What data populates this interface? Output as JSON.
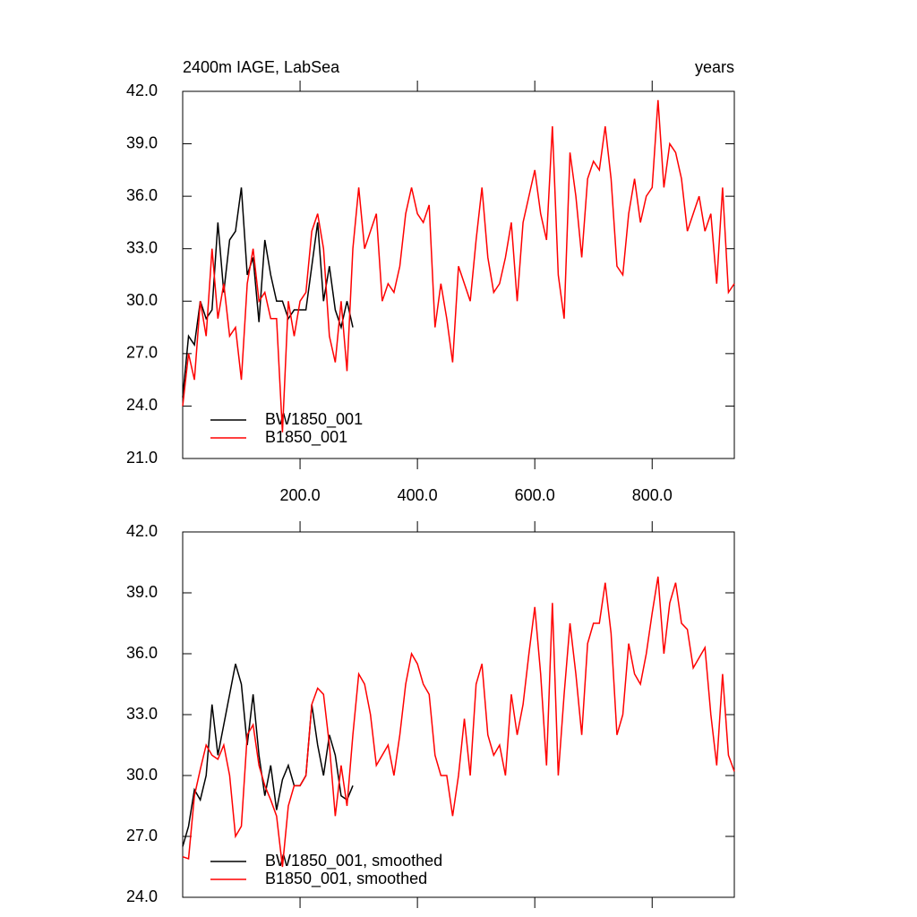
{
  "chart_data": [
    {
      "type": "line",
      "title": "2400m IAGE, LabSea",
      "units": "years",
      "xlim": [
        0,
        940
      ],
      "xticks": [
        {
          "value": 200,
          "label": "200.0"
        },
        {
          "value": 400,
          "label": "400.0"
        },
        {
          "value": 600,
          "label": "600.0"
        },
        {
          "value": 800,
          "label": "800.0"
        }
      ],
      "ylim": [
        21,
        42
      ],
      "yticks": [
        {
          "value": 21,
          "label": "21.0"
        },
        {
          "value": 24,
          "label": "24.0"
        },
        {
          "value": 27,
          "label": "27.0"
        },
        {
          "value": 30,
          "label": "30.0"
        },
        {
          "value": 33,
          "label": "33.0"
        },
        {
          "value": 36,
          "label": "36.0"
        },
        {
          "value": 39,
          "label": "39.0"
        },
        {
          "value": 42,
          "label": "42.0"
        }
      ],
      "series": [
        {
          "name": "BW1850_001",
          "color": "#000000",
          "x": [
            0,
            10,
            20,
            30,
            40,
            50,
            60,
            70,
            80,
            90,
            100,
            110,
            120,
            130,
            140,
            150,
            160,
            170,
            180,
            190,
            200,
            210,
            220,
            230,
            240,
            250,
            260,
            270,
            280,
            290
          ],
          "values": [
            24.5,
            28,
            27.5,
            30,
            29,
            29.5,
            34.5,
            30.5,
            33.5,
            34,
            36.5,
            31.5,
            32.5,
            28.8,
            33.5,
            31.5,
            30,
            30,
            29,
            29.5,
            29.5,
            29.5,
            32,
            34.5,
            30,
            32,
            29.5,
            28.5,
            30,
            28.5
          ]
        },
        {
          "name": "B1850_001",
          "color": "#ff0000",
          "x": [
            0,
            10,
            20,
            30,
            40,
            50,
            60,
            70,
            80,
            90,
            100,
            110,
            120,
            130,
            140,
            150,
            160,
            170,
            180,
            190,
            200,
            210,
            220,
            230,
            240,
            250,
            260,
            270,
            280,
            290,
            300,
            310,
            320,
            330,
            340,
            350,
            360,
            370,
            380,
            390,
            400,
            410,
            420,
            430,
            440,
            450,
            460,
            470,
            480,
            490,
            500,
            510,
            520,
            530,
            540,
            550,
            560,
            570,
            580,
            590,
            600,
            610,
            620,
            630,
            640,
            650,
            660,
            670,
            680,
            690,
            700,
            710,
            720,
            730,
            740,
            750,
            760,
            770,
            780,
            790,
            800,
            810,
            820,
            830,
            840,
            850,
            860,
            870,
            880,
            890,
            900,
            910,
            920,
            930,
            940
          ],
          "values": [
            24,
            27,
            25.5,
            30,
            28,
            33,
            29,
            31,
            28,
            28.5,
            25.5,
            31,
            33,
            30,
            30.5,
            29,
            29,
            22.5,
            30,
            28,
            30,
            30.5,
            34,
            35,
            33,
            28,
            26.5,
            30,
            26,
            33,
            36.5,
            33,
            34,
            35,
            30,
            31,
            30.5,
            32,
            35,
            36.5,
            35,
            34.5,
            35.5,
            28.5,
            31,
            29,
            26.5,
            32,
            31,
            30,
            33.5,
            36.5,
            32.5,
            30.5,
            31,
            32.5,
            34.5,
            30,
            34.5,
            36,
            37.5,
            35,
            33.5,
            40,
            31.5,
            29,
            38.5,
            36,
            32.5,
            37,
            38,
            37.5,
            40,
            37,
            32,
            31.5,
            35,
            37,
            34.5,
            36,
            36.5,
            41.5,
            36.5,
            39,
            38.5,
            37,
            34,
            35,
            36,
            34,
            35,
            31,
            36.5,
            30.5,
            31
          ]
        }
      ]
    },
    {
      "type": "line",
      "xlim": [
        0,
        940
      ],
      "ylim": [
        24,
        42
      ],
      "yticks": [
        {
          "value": 24,
          "label": "24.0"
        },
        {
          "value": 27,
          "label": "27.0"
        },
        {
          "value": 30,
          "label": "30.0"
        },
        {
          "value": 33,
          "label": "33.0"
        },
        {
          "value": 36,
          "label": "36.0"
        },
        {
          "value": 39,
          "label": "39.0"
        },
        {
          "value": 42,
          "label": "42.0"
        }
      ],
      "series": [
        {
          "name": "BW1850_001, smoothed",
          "color": "#000000",
          "x": [
            0,
            10,
            20,
            30,
            40,
            50,
            60,
            70,
            80,
            90,
            100,
            110,
            120,
            130,
            140,
            150,
            160,
            170,
            180,
            190,
            200,
            210,
            220,
            230,
            240,
            250,
            260,
            270,
            280,
            290
          ],
          "values": [
            26.5,
            27.5,
            29.3,
            28.8,
            30,
            33.5,
            31,
            32.5,
            34,
            35.5,
            34.5,
            31.5,
            34,
            31,
            29,
            30.5,
            28.3,
            29.8,
            30.5,
            29.5,
            29.5,
            30,
            33.5,
            31.5,
            30,
            32,
            31,
            29,
            28.8,
            29.5
          ]
        },
        {
          "name": "B1850_001, smoothed",
          "color": "#ff0000",
          "x": [
            0,
            10,
            20,
            30,
            40,
            50,
            60,
            70,
            80,
            90,
            100,
            110,
            120,
            130,
            140,
            150,
            160,
            170,
            180,
            190,
            200,
            210,
            220,
            230,
            240,
            250,
            260,
            270,
            280,
            290,
            300,
            310,
            320,
            330,
            340,
            350,
            360,
            370,
            380,
            390,
            400,
            410,
            420,
            430,
            440,
            450,
            460,
            470,
            480,
            490,
            500,
            510,
            520,
            530,
            540,
            550,
            560,
            570,
            580,
            590,
            600,
            610,
            620,
            630,
            640,
            650,
            660,
            670,
            680,
            690,
            700,
            710,
            720,
            730,
            740,
            750,
            760,
            770,
            780,
            790,
            800,
            810,
            820,
            830,
            840,
            850,
            860,
            870,
            880,
            890,
            900,
            910,
            920,
            930,
            940
          ],
          "values": [
            26,
            25.9,
            29,
            30.3,
            31.5,
            31,
            30.8,
            31.5,
            30,
            27,
            27.5,
            32,
            32.5,
            30.5,
            29.5,
            28.8,
            28,
            25.5,
            28.5,
            29.5,
            29.5,
            30,
            33.5,
            34.3,
            34,
            31.5,
            28,
            30.5,
            28.5,
            32,
            35,
            34.5,
            33,
            30.5,
            31,
            31.5,
            30,
            32,
            34.5,
            36,
            35.5,
            34.5,
            34,
            31,
            30,
            30,
            28,
            30,
            32.8,
            30,
            34.5,
            35.5,
            32,
            31,
            31.5,
            30,
            34,
            32,
            33.5,
            36,
            38.3,
            35,
            30.5,
            38.5,
            30,
            34,
            37.5,
            35,
            32,
            36.5,
            37.5,
            37.5,
            39.5,
            37,
            32,
            33,
            36.5,
            35,
            34.5,
            36,
            38,
            39.8,
            36,
            38.5,
            39.5,
            37.5,
            37.2,
            35.3,
            35.8,
            36.3,
            33,
            30.5,
            35,
            31,
            30.2
          ]
        }
      ]
    }
  ]
}
